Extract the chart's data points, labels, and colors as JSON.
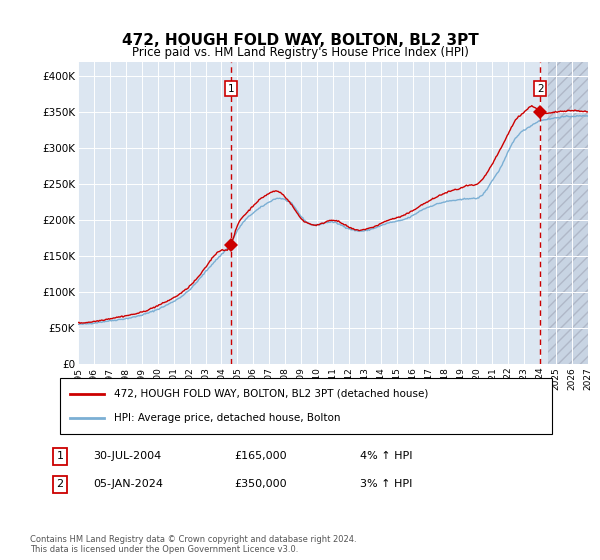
{
  "title": "472, HOUGH FOLD WAY, BOLTON, BL2 3PT",
  "subtitle": "Price paid vs. HM Land Registry's House Price Index (HPI)",
  "title_fontsize": 11,
  "subtitle_fontsize": 9,
  "background_color": "#dce6f1",
  "future_bg_color": "#c8d4e3",
  "hpi_color": "#7bafd4",
  "price_color": "#cc0000",
  "sale1_date_num": 2004.58,
  "sale1_price": 165000,
  "sale1_label": "1",
  "sale2_date_num": 2024.01,
  "sale2_price": 350000,
  "sale2_label": "2",
  "xmin": 1995,
  "xmax": 2027,
  "ymin": 0,
  "ymax": 420000,
  "yticks": [
    0,
    50000,
    100000,
    150000,
    200000,
    250000,
    300000,
    350000,
    400000
  ],
  "ytick_labels": [
    "£0",
    "£50K",
    "£100K",
    "£150K",
    "£200K",
    "£250K",
    "£300K",
    "£350K",
    "£400K"
  ],
  "xtick_years": [
    1995,
    1996,
    1997,
    1998,
    1999,
    2000,
    2001,
    2002,
    2003,
    2004,
    2005,
    2006,
    2007,
    2008,
    2009,
    2010,
    2011,
    2012,
    2013,
    2014,
    2015,
    2016,
    2017,
    2018,
    2019,
    2020,
    2021,
    2022,
    2023,
    2024,
    2025,
    2026,
    2027
  ],
  "legend_entry1": "472, HOUGH FOLD WAY, BOLTON, BL2 3PT (detached house)",
  "legend_entry2": "HPI: Average price, detached house, Bolton",
  "annotation1_date": "30-JUL-2004",
  "annotation1_price": "£165,000",
  "annotation1_hpi": "4% ↑ HPI",
  "annotation2_date": "05-JAN-2024",
  "annotation2_price": "£350,000",
  "annotation2_hpi": "3% ↑ HPI",
  "footer": "Contains HM Land Registry data © Crown copyright and database right 2024.\nThis data is licensed under the Open Government Licence v3.0.",
  "future_start": 2024.5,
  "hpi_keypoints": [
    [
      1995.0,
      55000
    ],
    [
      1996.0,
      57000
    ],
    [
      1997.0,
      60000
    ],
    [
      1998.0,
      63000
    ],
    [
      1999.0,
      68000
    ],
    [
      2000.0,
      76000
    ],
    [
      2001.0,
      87000
    ],
    [
      2002.0,
      103000
    ],
    [
      2003.0,
      128000
    ],
    [
      2004.0,
      152000
    ],
    [
      2004.5,
      165000
    ],
    [
      2005.0,
      185000
    ],
    [
      2005.5,
      200000
    ],
    [
      2006.0,
      210000
    ],
    [
      2006.5,
      218000
    ],
    [
      2007.0,
      225000
    ],
    [
      2007.5,
      230000
    ],
    [
      2008.0,
      228000
    ],
    [
      2008.5,
      220000
    ],
    [
      2009.0,
      205000
    ],
    [
      2009.5,
      195000
    ],
    [
      2010.0,
      193000
    ],
    [
      2010.5,
      196000
    ],
    [
      2011.0,
      197000
    ],
    [
      2011.5,
      193000
    ],
    [
      2012.0,
      188000
    ],
    [
      2012.5,
      185000
    ],
    [
      2013.0,
      185000
    ],
    [
      2013.5,
      188000
    ],
    [
      2014.0,
      192000
    ],
    [
      2014.5,
      196000
    ],
    [
      2015.0,
      198000
    ],
    [
      2015.5,
      201000
    ],
    [
      2016.0,
      206000
    ],
    [
      2016.5,
      213000
    ],
    [
      2017.0,
      218000
    ],
    [
      2017.5,
      222000
    ],
    [
      2018.0,
      225000
    ],
    [
      2018.5,
      227000
    ],
    [
      2019.0,
      228000
    ],
    [
      2019.5,
      230000
    ],
    [
      2020.0,
      230000
    ],
    [
      2020.5,
      238000
    ],
    [
      2021.0,
      255000
    ],
    [
      2021.5,
      272000
    ],
    [
      2022.0,
      295000
    ],
    [
      2022.5,
      315000
    ],
    [
      2023.0,
      325000
    ],
    [
      2023.5,
      332000
    ],
    [
      2024.0,
      338000
    ],
    [
      2024.5,
      340000
    ],
    [
      2025.0,
      342000
    ],
    [
      2026.0,
      344000
    ],
    [
      2027.0,
      345000
    ]
  ],
  "red_keypoints": [
    [
      1995.0,
      57000
    ],
    [
      1996.0,
      59000
    ],
    [
      1997.0,
      63000
    ],
    [
      1998.0,
      67000
    ],
    [
      1999.0,
      72000
    ],
    [
      2000.0,
      81000
    ],
    [
      2001.0,
      92000
    ],
    [
      2002.0,
      108000
    ],
    [
      2003.0,
      134000
    ],
    [
      2004.0,
      158000
    ],
    [
      2004.58,
      165000
    ],
    [
      2005.0,
      192000
    ],
    [
      2005.5,
      208000
    ],
    [
      2006.0,
      220000
    ],
    [
      2006.5,
      230000
    ],
    [
      2007.0,
      237000
    ],
    [
      2007.5,
      240000
    ],
    [
      2008.0,
      232000
    ],
    [
      2008.5,
      218000
    ],
    [
      2009.0,
      202000
    ],
    [
      2009.5,
      195000
    ],
    [
      2010.0,
      193000
    ],
    [
      2010.5,
      197000
    ],
    [
      2011.0,
      200000
    ],
    [
      2011.5,
      196000
    ],
    [
      2012.0,
      190000
    ],
    [
      2012.5,
      186000
    ],
    [
      2013.0,
      187000
    ],
    [
      2013.5,
      190000
    ],
    [
      2014.0,
      195000
    ],
    [
      2014.5,
      200000
    ],
    [
      2015.0,
      203000
    ],
    [
      2015.5,
      207000
    ],
    [
      2016.0,
      213000
    ],
    [
      2016.5,
      220000
    ],
    [
      2017.0,
      226000
    ],
    [
      2017.5,
      232000
    ],
    [
      2018.0,
      237000
    ],
    [
      2018.5,
      241000
    ],
    [
      2019.0,
      244000
    ],
    [
      2019.5,
      248000
    ],
    [
      2020.0,
      249000
    ],
    [
      2020.5,
      260000
    ],
    [
      2021.0,
      278000
    ],
    [
      2021.5,
      298000
    ],
    [
      2022.0,
      320000
    ],
    [
      2022.5,
      340000
    ],
    [
      2023.0,
      350000
    ],
    [
      2023.5,
      358000
    ],
    [
      2024.01,
      350000
    ],
    [
      2024.5,
      348000
    ],
    [
      2025.0,
      350000
    ],
    [
      2026.0,
      352000
    ],
    [
      2027.0,
      350000
    ]
  ]
}
